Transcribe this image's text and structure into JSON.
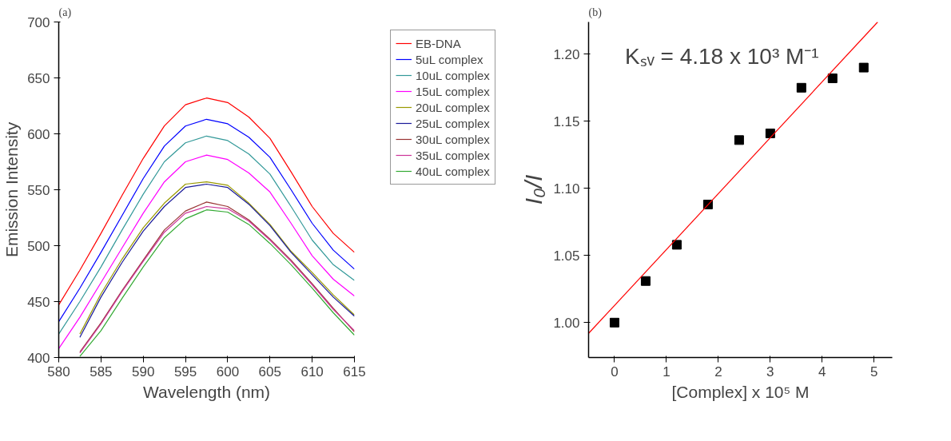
{
  "chart_data": [
    {
      "type": "line",
      "title": "(a)",
      "xlabel": "Wavelength (nm)",
      "ylabel": "Emission Intensity",
      "xlim": [
        580,
        615
      ],
      "ylim": [
        400,
        700
      ],
      "xticks": [
        580,
        585,
        590,
        595,
        600,
        605,
        610,
        615
      ],
      "yticks": [
        400,
        450,
        500,
        550,
        600,
        650,
        700
      ],
      "legend": "right",
      "x": [
        580,
        582.5,
        585,
        587.5,
        590,
        592.5,
        595,
        597.5,
        600,
        602.5,
        605,
        607.5,
        610,
        612.5,
        615
      ],
      "series": [
        {
          "name": "EB-DNA",
          "color": "#ff0000",
          "values": [
            447,
            478,
            511,
            545,
            578,
            607,
            626,
            632,
            628,
            615,
            596,
            566,
            535,
            511,
            494
          ]
        },
        {
          "name": "5uL complex",
          "color": "#0000ff",
          "values": [
            432,
            462,
            494,
            527,
            560,
            589,
            607,
            613,
            609,
            597,
            579,
            550,
            520,
            496,
            479
          ]
        },
        {
          "name": "10uL complex",
          "color": "#339999",
          "values": [
            421,
            450,
            481,
            514,
            546,
            575,
            592,
            598,
            594,
            582,
            564,
            535,
            505,
            483,
            469
          ]
        },
        {
          "name": "15uL complex",
          "color": "#ff00ff",
          "values": [
            408,
            436,
            467,
            498,
            529,
            557,
            575,
            581,
            577,
            565,
            548,
            520,
            491,
            470,
            455
          ]
        },
        {
          "name": "20uL complex",
          "color": "#999900",
          "values": [
            null,
            421,
            457,
            488,
            516,
            538,
            555,
            557,
            554,
            538,
            519,
            495,
            476,
            456,
            438
          ]
        },
        {
          "name": "25uL complex",
          "color": "#1a1a99",
          "values": [
            null,
            418,
            454,
            485,
            513,
            535,
            552,
            555,
            552,
            537,
            518,
            494,
            474,
            454,
            437
          ]
        },
        {
          "name": "30uL complex",
          "color": "#993333",
          "values": [
            null,
            405,
            431,
            460,
            487,
            514,
            531,
            539,
            535,
            523,
            506,
            487,
            466,
            444,
            423
          ]
        },
        {
          "name": "35uL complex",
          "color": "#cc3399",
          "values": [
            null,
            404,
            430,
            459,
            486,
            512,
            529,
            535,
            533,
            522,
            505,
            486,
            465,
            443,
            424
          ]
        },
        {
          "name": "40uL complex",
          "color": "#33aa33",
          "values": [
            null,
            401,
            424,
            453,
            481,
            507,
            524,
            532,
            530,
            519,
            502,
            483,
            462,
            440,
            420
          ]
        }
      ]
    },
    {
      "type": "scatter",
      "title": "(b)",
      "xlabel": "[Complex] x 10⁵ M",
      "ylabel": "I₀/I",
      "xlim": [
        -0.5,
        5.35
      ],
      "ylim": [
        0.974,
        1.224
      ],
      "xticks": [
        0,
        1,
        2,
        3,
        4,
        5
      ],
      "yticks": [
        {
          "value": 1.0,
          "label": "1.00"
        },
        {
          "value": 1.05,
          "label": "1.05"
        },
        {
          "value": 1.1,
          "label": "1.10"
        },
        {
          "value": 1.15,
          "label": "1.15"
        },
        {
          "value": 1.2,
          "label": "1.20"
        }
      ],
      "annotations": [
        "Kₛᵥ = 4.18 x 10³ M⁻¹"
      ],
      "x": [
        0,
        0.6,
        1.2,
        1.8,
        2.4,
        3.0,
        3.6,
        4.2,
        4.8
      ],
      "series": [
        {
          "type": "scatter",
          "marker": "square",
          "color": "#000000",
          "values": [
            1.0,
            1.031,
            1.058,
            1.088,
            1.136,
            1.141,
            1.175,
            1.182,
            1.19
          ]
        },
        {
          "type": "line",
          "color": "#ff0000",
          "x": [
            -0.5,
            5.07
          ],
          "values": [
            0.992,
            1.224
          ]
        }
      ]
    }
  ]
}
